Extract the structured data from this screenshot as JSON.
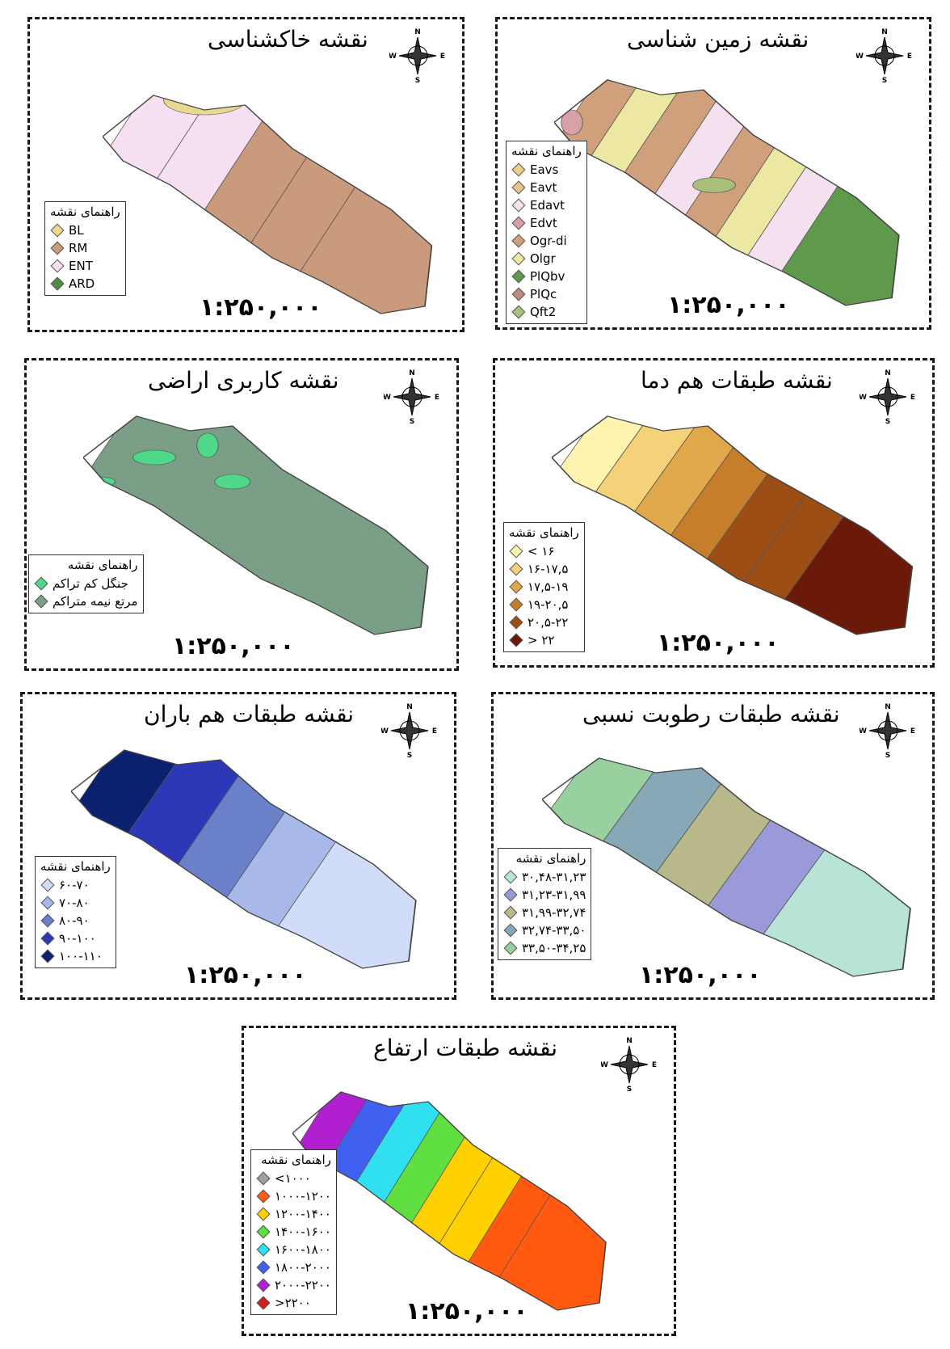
{
  "compass": {
    "n": "N",
    "e": "E",
    "s": "S",
    "w": "W"
  },
  "maps": [
    {
      "title": "نقشه خاکشناسی",
      "legend_title": "راهنمای نقشه",
      "scale": "۱:۲۵۰,۰۰۰",
      "legend": [
        {
          "label": "BL",
          "color": "#e8d890"
        },
        {
          "label": "RM",
          "color": "#c99a7c"
        },
        {
          "label": "ENT",
          "color": "#f5dff0"
        },
        {
          "label": "ARD",
          "color": "#4f8a45"
        }
      ]
    },
    {
      "title": "نقشه زمین شناسی",
      "legend_title": "راهنمای نقشه",
      "scale": "۱:۲۵۰,۰۰۰",
      "legend": [
        {
          "label": "Eavs",
          "color": "#e8d088"
        },
        {
          "label": "Eavt",
          "color": "#e6c48a"
        },
        {
          "label": "Edavt",
          "color": "#f5e0f0"
        },
        {
          "label": "Edvt",
          "color": "#d9a0a8"
        },
        {
          "label": "Ogr-di",
          "color": "#d0a07c"
        },
        {
          "label": "Olgr",
          "color": "#ede7a4"
        },
        {
          "label": "PlQbv",
          "color": "#5f9a4c"
        },
        {
          "label": "PlQc",
          "color": "#c08a80"
        },
        {
          "label": "Qft2",
          "color": "#a8c07a"
        }
      ]
    },
    {
      "title": "نقشه کاربری اراضی",
      "legend_title": "راهنمای نقشه",
      "scale": "۱:۲۵۰,۰۰۰",
      "legend": [
        {
          "label": "جنگل کم تراکم",
          "color": "#4fd88a"
        },
        {
          "label": "مرتع نیمه متراکم",
          "color": "#7a9f86"
        }
      ]
    },
    {
      "title": "نقشه طبقات هم دما",
      "legend_title": "راهنمای نقشه",
      "scale": "۱:۲۵۰,۰۰۰",
      "legend": [
        {
          "label": "< ۱۶",
          "color": "#fff3b0"
        },
        {
          "label": "۱۶-۱۷,۵",
          "color": "#f5d27a"
        },
        {
          "label": "۱۷,۵-۱۹",
          "color": "#e0a84a"
        },
        {
          "label": "۱۹-۲۰,۵",
          "color": "#c77e2a"
        },
        {
          "label": "۲۰,۵-۲۲",
          "color": "#9c4e14"
        },
        {
          "label": "> ۲۲",
          "color": "#6b1a0a"
        }
      ]
    },
    {
      "title": "نقشه طبقات هم باران",
      "legend_title": "راهنمای نقشه",
      "scale": "۱:۲۵۰,۰۰۰",
      "legend": [
        {
          "label": "۶۰-۷۰",
          "color": "#d0dcf8"
        },
        {
          "label": "۷۰-۸۰",
          "color": "#a8b8e8"
        },
        {
          "label": "۸۰-۹۰",
          "color": "#6a80c8"
        },
        {
          "label": "۹۰-۱۰۰",
          "color": "#2c38b8"
        },
        {
          "label": "۱۰۰-۱۱۰",
          "color": "#0c2070"
        }
      ]
    },
    {
      "title": "نقشه طبقات رطوبت نسبی",
      "legend_title": "راهنمای نقشه",
      "scale": "۱:۲۵۰,۰۰۰",
      "legend": [
        {
          "label": "۳۰,۴۸-۳۱,۲۳",
          "color": "#b8e4d8"
        },
        {
          "label": "۳۱,۲۳-۳۱,۹۹",
          "color": "#9a9ad8"
        },
        {
          "label": "۳۱,۹۹-۳۲,۷۴",
          "color": "#b8b88a"
        },
        {
          "label": "۳۲,۷۴-۳۳,۵۰",
          "color": "#88a8b8"
        },
        {
          "label": "۳۳,۵۰-۳۴,۲۵",
          "color": "#98d0a0"
        }
      ]
    },
    {
      "title": "نقشه طبقات ارتفاع",
      "legend_title": "راهنمای نقشه",
      "scale": "۱:۲۵۰,۰۰۰",
      "legend": [
        {
          "label": "<۱۰۰۰",
          "color": "#a0a0a0"
        },
        {
          "label": "۱۰۰۰-۱۲۰۰",
          "color": "#ff5a10"
        },
        {
          "label": "۱۲۰۰-۱۴۰۰",
          "color": "#ffd000"
        },
        {
          "label": "۱۴۰۰-۱۶۰۰",
          "color": "#60e040"
        },
        {
          "label": "۱۶۰۰-۱۸۰۰",
          "color": "#30e0f0"
        },
        {
          "label": "۱۸۰۰-۲۰۰۰",
          "color": "#4060f0"
        },
        {
          "label": "۲۰۰۰-۲۲۰۰",
          "color": "#b020d0"
        },
        {
          "label": ">۲۲۰۰",
          "color": "#d02020"
        }
      ]
    }
  ]
}
